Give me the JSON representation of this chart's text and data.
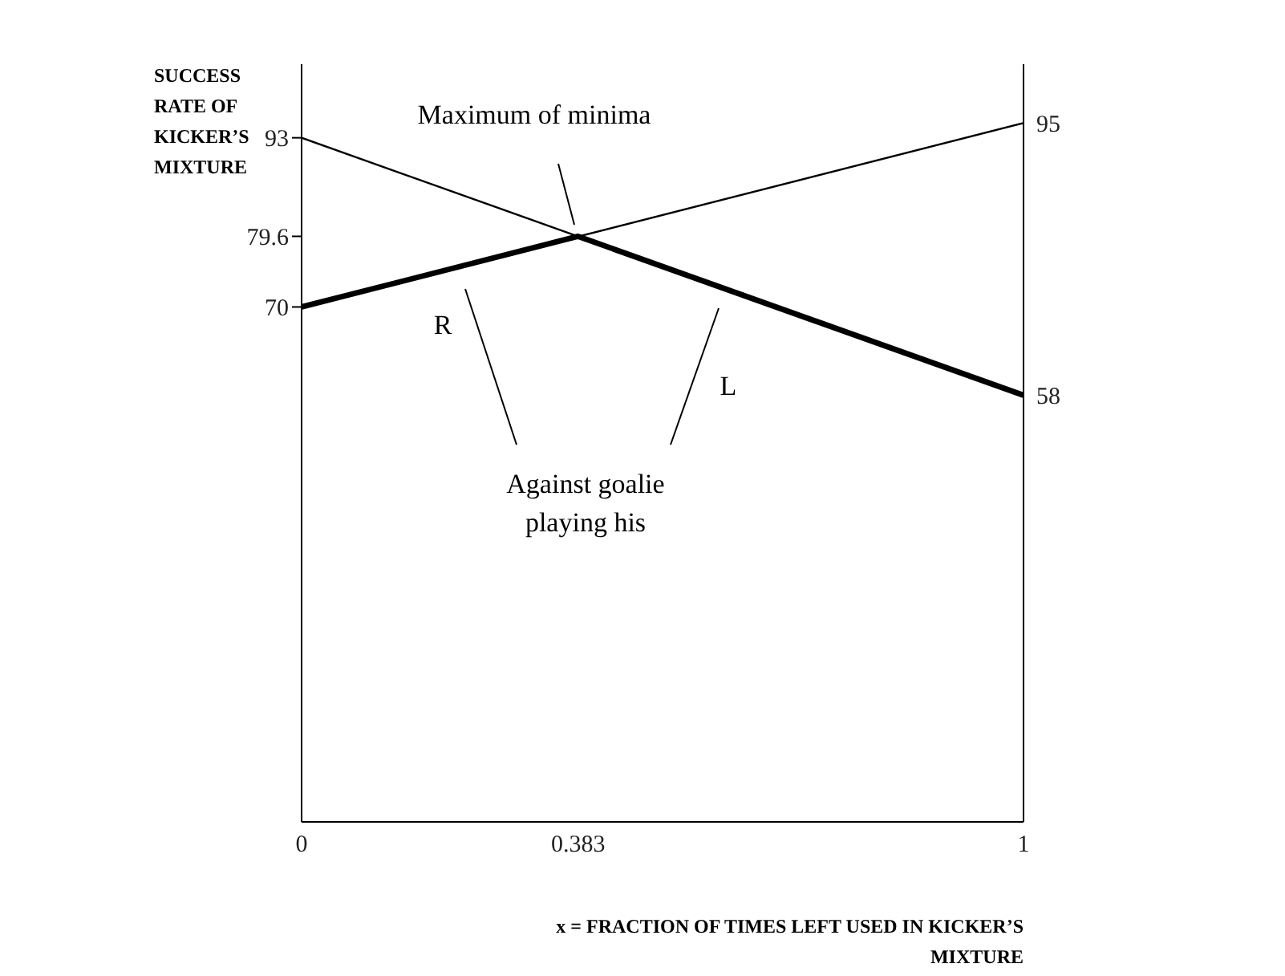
{
  "chart_data": {
    "type": "line",
    "xlabel": "x = FRACTION OF TIMES LEFT USED IN KICKER’S MIXTURE",
    "ylabel": "SUCCESS RATE OF KICKER’S MIXTURE",
    "xlim": [
      0,
      1
    ],
    "xticks": [
      0,
      0.383,
      1
    ],
    "ylim": [
      0,
      103
    ],
    "yticks": [
      70,
      79.6,
      93
    ],
    "y2lim": [
      0,
      103
    ],
    "y2ticks": [
      58,
      95
    ],
    "marker": "none",
    "line_style": "solid",
    "grid": false,
    "series": [
      {
        "name": "R",
        "color": "#000000",
        "x": [
          0,
          1
        ],
        "values": [
          70,
          95
        ]
      },
      {
        "name": "L",
        "color": "#000000",
        "x": [
          0,
          1
        ],
        "values": [
          93,
          58
        ]
      },
      {
        "color": "#000000",
        "x": [
          0,
          0.383,
          1
        ],
        "values": [
          70,
          79.6,
          58
        ]
      }
    ],
    "annotations": [
      "Maximum of minima",
      "Against goalie playing his"
    ]
  }
}
